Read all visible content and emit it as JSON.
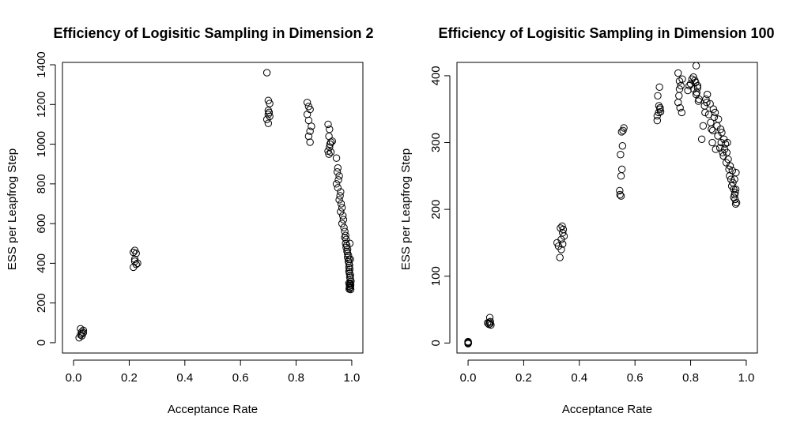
{
  "chart_data": [
    {
      "type": "scatter",
      "title": "Efficiency of Logisitic Sampling in Dimension 2",
      "xlabel": "Acceptance Rate",
      "ylabel": "ESS per Leapfrog Step",
      "xlim": [
        -0.04,
        1.04
      ],
      "ylim": [
        -52,
        1412
      ],
      "xticks": [
        "0.0",
        "0.2",
        "0.4",
        "0.6",
        "0.8",
        "1.0"
      ],
      "xtick_values": [
        0,
        0.2,
        0.4,
        0.6,
        0.8,
        1.0
      ],
      "yticks": [
        "0",
        "200",
        "400",
        "600",
        "800",
        "1000",
        "1200",
        "1400"
      ],
      "ytick_values": [
        0,
        200,
        400,
        600,
        800,
        1000,
        1200,
        1400
      ],
      "grid": false,
      "legend": "none",
      "x": [
        0.02,
        0.025,
        0.03,
        0.03,
        0.035,
        0.025,
        0.03,
        0.035,
        0.215,
        0.22,
        0.225,
        0.22,
        0.23,
        0.215,
        0.22,
        0.225,
        0.695,
        0.7,
        0.705,
        0.7,
        0.7,
        0.705,
        0.695,
        0.7,
        0.703,
        0.84,
        0.845,
        0.85,
        0.84,
        0.845,
        0.855,
        0.85,
        0.845,
        0.85,
        0.915,
        0.92,
        0.918,
        0.925,
        0.92,
        0.915,
        0.922,
        0.93,
        0.925,
        0.918,
        0.945,
        0.95,
        0.948,
        0.955,
        0.952,
        0.945,
        0.95,
        0.96,
        0.958,
        0.955,
        0.962,
        0.965,
        0.96,
        0.968,
        0.97,
        0.965,
        0.972,
        0.975,
        0.978,
        0.975,
        0.98,
        0.978,
        0.982,
        0.98,
        0.985,
        0.983,
        0.985,
        0.988,
        0.985,
        0.99,
        0.988,
        0.99,
        0.992,
        0.99,
        0.993,
        0.99,
        0.992,
        0.995,
        0.993,
        0.995,
        0.997,
        0.99,
        0.994,
        0.996,
        0.992,
        0.995,
        0.993,
        0.991,
        0.996,
        0.994,
        0.992,
        0.995,
        0.993
      ],
      "y": [
        25,
        40,
        55,
        45,
        62,
        70,
        35,
        50,
        455,
        465,
        450,
        410,
        400,
        380,
        420,
        395,
        1360,
        1220,
        1205,
        1170,
        1150,
        1140,
        1125,
        1105,
        1160,
        1210,
        1190,
        1175,
        1150,
        1120,
        1090,
        1065,
        1040,
        1010,
        1100,
        1075,
        1040,
        1010,
        985,
        965,
        1000,
        1015,
        960,
        950,
        930,
        880,
        860,
        840,
        820,
        800,
        780,
        760,
        740,
        720,
        700,
        680,
        660,
        640,
        620,
        600,
        580,
        560,
        540,
        530,
        520,
        500,
        490,
        480,
        470,
        460,
        450,
        440,
        430,
        420,
        410,
        400,
        390,
        380,
        370,
        360,
        350,
        340,
        330,
        320,
        310,
        300,
        295,
        290,
        285,
        280,
        275,
        270,
        268,
        300,
        350,
        420,
        500
      ],
      "point_shape": "open-circle"
    },
    {
      "type": "scatter",
      "title": "Efficiency of Logisitic Sampling in Dimension 100",
      "xlabel": "Acceptance Rate",
      "ylabel": "ESS per Leapfrog Step",
      "xlim": [
        -0.04,
        1.04
      ],
      "ylim": [
        -15,
        420
      ],
      "xticks": [
        "0.0",
        "0.2",
        "0.4",
        "0.6",
        "0.8",
        "1.0"
      ],
      "xtick_values": [
        0,
        0.2,
        0.4,
        0.6,
        0.8,
        1.0
      ],
      "yticks": [
        "0",
        "100",
        "200",
        "300",
        "400"
      ],
      "ytick_values": [
        0,
        100,
        200,
        300,
        400
      ],
      "grid": false,
      "legend": "none",
      "x": [
        0.0,
        0.0,
        0.0,
        0.0,
        0.001,
        0.0,
        0.07,
        0.075,
        0.08,
        0.078,
        0.082,
        0.079,
        0.076,
        0.32,
        0.325,
        0.33,
        0.335,
        0.34,
        0.338,
        0.332,
        0.34,
        0.342,
        0.345,
        0.335,
        0.545,
        0.55,
        0.548,
        0.555,
        0.552,
        0.56,
        0.553,
        0.55,
        0.546,
        0.557,
        0.68,
        0.685,
        0.69,
        0.682,
        0.688,
        0.692,
        0.686,
        0.68,
        0.69,
        0.755,
        0.76,
        0.765,
        0.758,
        0.762,
        0.768,
        0.76,
        0.755,
        0.77,
        0.79,
        0.795,
        0.8,
        0.805,
        0.81,
        0.815,
        0.82,
        0.82,
        0.825,
        0.822,
        0.818,
        0.812,
        0.825,
        0.83,
        0.828,
        0.84,
        0.845,
        0.85,
        0.852,
        0.855,
        0.86,
        0.858,
        0.865,
        0.87,
        0.872,
        0.875,
        0.88,
        0.885,
        0.882,
        0.878,
        0.888,
        0.89,
        0.895,
        0.9,
        0.898,
        0.905,
        0.91,
        0.908,
        0.912,
        0.915,
        0.92,
        0.918,
        0.922,
        0.925,
        0.928,
        0.93,
        0.932,
        0.935,
        0.938,
        0.94,
        0.942,
        0.945,
        0.948,
        0.95,
        0.952,
        0.955,
        0.958,
        0.96,
        0.962,
        0.965,
        0.96,
        0.955,
        0.962,
        0.958,
        0.963
      ],
      "y": [
        0,
        1,
        -1,
        2,
        0,
        1,
        30,
        28,
        32,
        38,
        27,
        29,
        31,
        150,
        145,
        128,
        140,
        165,
        175,
        172,
        148,
        170,
        160,
        155,
        228,
        220,
        282,
        295,
        316,
        322,
        260,
        250,
        222,
        318,
        340,
        345,
        352,
        370,
        383,
        346,
        355,
        333,
        350,
        404,
        392,
        385,
        370,
        352,
        345,
        380,
        360,
        395,
        378,
        385,
        388,
        395,
        398,
        393,
        415,
        372,
        382,
        375,
        390,
        380,
        385,
        365,
        362,
        305,
        325,
        355,
        345,
        365,
        372,
        360,
        342,
        358,
        330,
        320,
        318,
        338,
        350,
        300,
        345,
        290,
        325,
        335,
        310,
        292,
        300,
        320,
        315,
        285,
        305,
        280,
        290,
        298,
        270,
        285,
        300,
        275,
        260,
        250,
        265,
        245,
        235,
        258,
        240,
        230,
        222,
        215,
        208,
        210,
        225,
        218,
        230,
        245,
        255
      ],
      "point_shape": "open-circle"
    }
  ]
}
